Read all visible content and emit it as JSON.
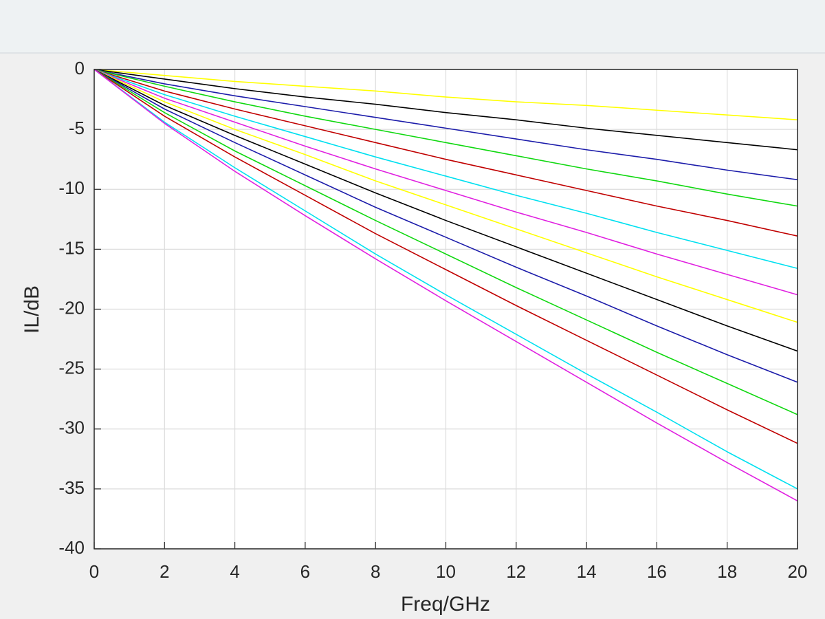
{
  "chart_data": {
    "type": "line",
    "xlabel": "Freq/GHz",
    "ylabel": "IL/dB",
    "x": [
      0,
      2,
      4,
      6,
      8,
      10,
      12,
      14,
      16,
      18,
      20
    ],
    "series": [
      {
        "color": "#ffff00",
        "values": [
          0,
          -0.5,
          -1.0,
          -1.4,
          -1.8,
          -2.3,
          -2.7,
          -3.0,
          -3.4,
          -3.8,
          -4.2
        ]
      },
      {
        "color": "#000000",
        "values": [
          0,
          -0.8,
          -1.6,
          -2.3,
          -2.9,
          -3.6,
          -4.2,
          -4.9,
          -5.5,
          -6.1,
          -6.7
        ]
      },
      {
        "color": "#1c1caa",
        "values": [
          0,
          -1.2,
          -2.2,
          -3.1,
          -4.0,
          -4.9,
          -5.8,
          -6.7,
          -7.5,
          -8.4,
          -9.2
        ]
      },
      {
        "color": "#10d810",
        "values": [
          0,
          -1.4,
          -2.7,
          -3.9,
          -5.0,
          -6.1,
          -7.2,
          -8.3,
          -9.3,
          -10.4,
          -11.4
        ]
      },
      {
        "color": "#c00000",
        "values": [
          0,
          -1.8,
          -3.3,
          -4.7,
          -6.1,
          -7.5,
          -8.8,
          -10.1,
          -11.4,
          -12.6,
          -13.9
        ]
      },
      {
        "color": "#00e0f0",
        "values": [
          0,
          -2.1,
          -3.9,
          -5.6,
          -7.3,
          -8.9,
          -10.5,
          -12.0,
          -13.6,
          -15.1,
          -16.6
        ]
      },
      {
        "color": "#e020e0",
        "values": [
          0,
          -2.4,
          -4.4,
          -6.4,
          -8.3,
          -10.1,
          -11.9,
          -13.6,
          -15.4,
          -17.1,
          -18.8
        ]
      },
      {
        "color": "#ffff00",
        "values": [
          0,
          -2.7,
          -5.0,
          -7.1,
          -9.3,
          -11.3,
          -13.3,
          -15.3,
          -17.3,
          -19.2,
          -21.1
        ]
      },
      {
        "color": "#000000",
        "values": [
          0,
          -3.0,
          -5.5,
          -7.9,
          -10.3,
          -12.6,
          -14.8,
          -17.0,
          -19.2,
          -21.4,
          -23.5
        ]
      },
      {
        "color": "#1c1caa",
        "values": [
          0,
          -3.3,
          -6.1,
          -8.8,
          -11.5,
          -14.0,
          -16.5,
          -18.9,
          -21.4,
          -23.8,
          -26.1
        ]
      },
      {
        "color": "#10d810",
        "values": [
          0,
          -3.6,
          -6.8,
          -9.7,
          -12.6,
          -15.4,
          -18.2,
          -20.9,
          -23.6,
          -26.2,
          -28.8
        ]
      },
      {
        "color": "#c00000",
        "values": [
          0,
          -3.9,
          -7.3,
          -10.5,
          -13.7,
          -16.7,
          -19.7,
          -22.6,
          -25.5,
          -28.4,
          -31.2
        ]
      },
      {
        "color": "#00e0f0",
        "values": [
          0,
          -4.4,
          -8.2,
          -11.8,
          -15.4,
          -18.8,
          -22.1,
          -25.4,
          -28.6,
          -31.9,
          -35.0
        ]
      },
      {
        "color": "#e020e0",
        "values": [
          0,
          -4.5,
          -8.5,
          -12.2,
          -15.8,
          -19.3,
          -22.7,
          -26.1,
          -29.5,
          -32.8,
          -36.0
        ]
      }
    ],
    "xlim": [
      0,
      20
    ],
    "xticks": [
      0,
      2,
      4,
      6,
      8,
      10,
      12,
      14,
      16,
      18,
      20
    ],
    "ylim": [
      -40,
      0
    ],
    "yticks": [
      -40,
      -35,
      -30,
      -25,
      -20,
      -15,
      -10,
      -5,
      0
    ],
    "grid": true
  }
}
